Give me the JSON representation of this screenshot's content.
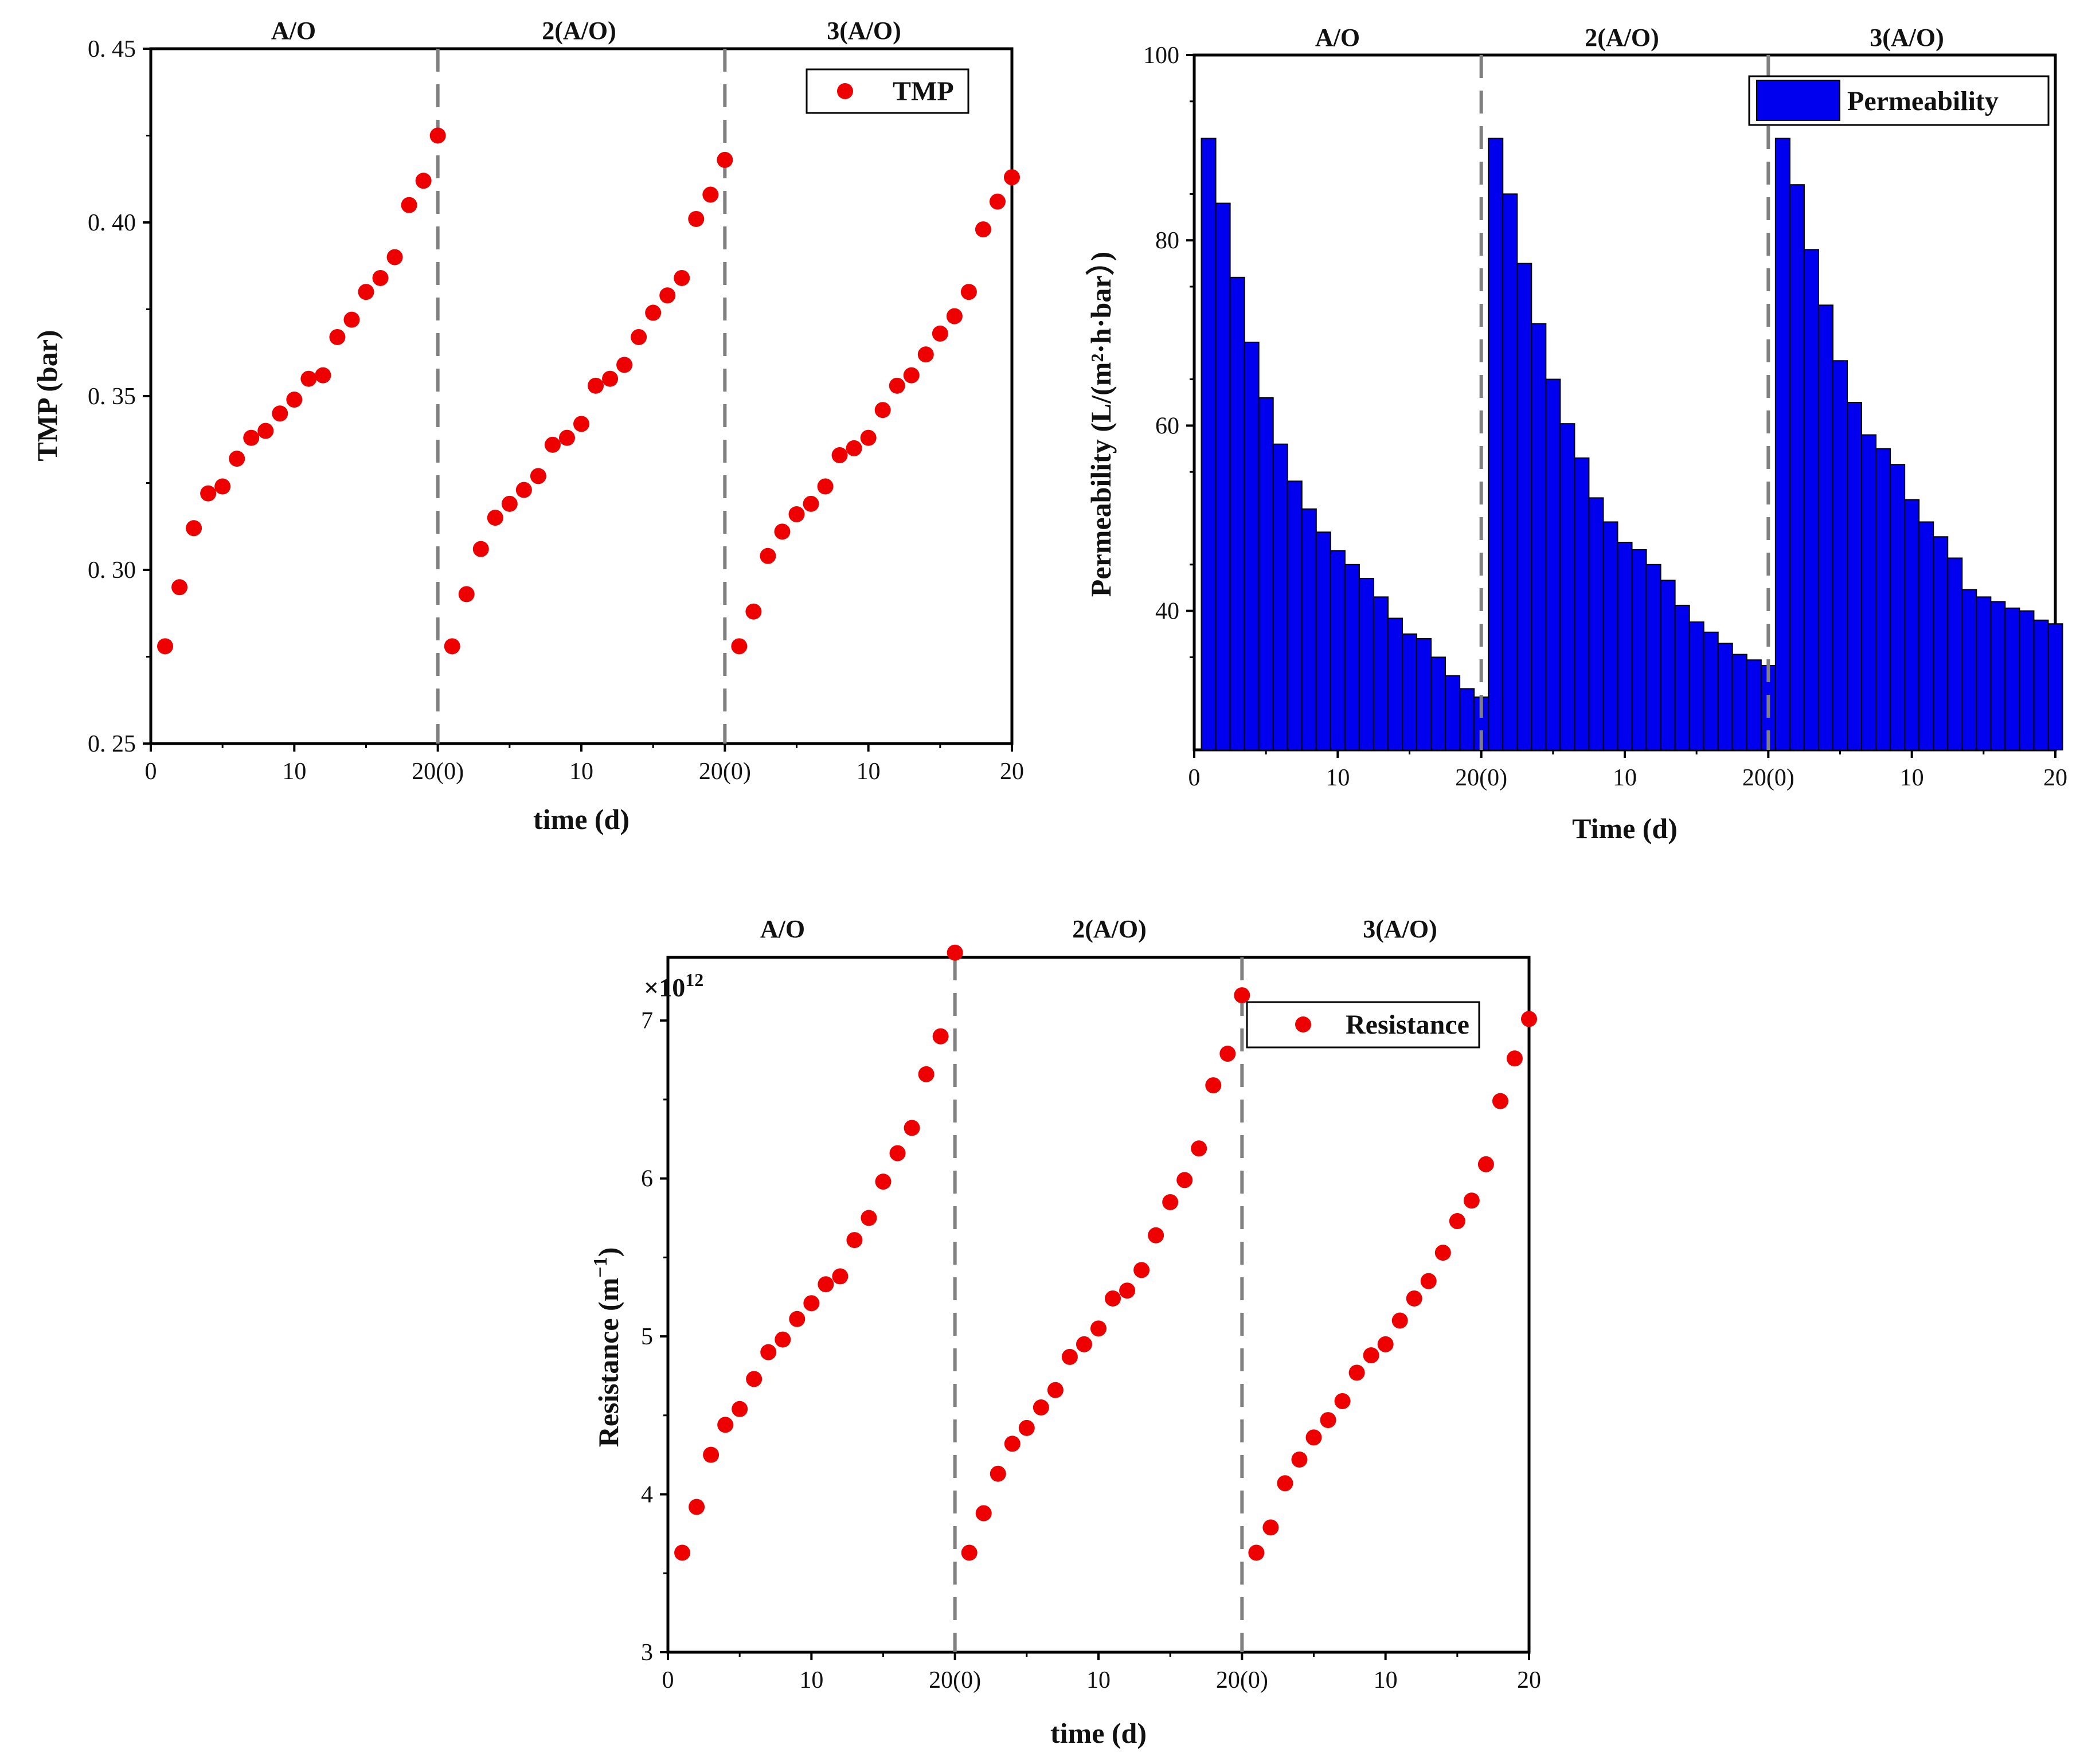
{
  "colors": {
    "marker": "#ee0000",
    "bar_fill": "#0000ee",
    "bar_edge": "#000000",
    "axis": "#000000",
    "divider": "#808080"
  },
  "chart_data": [
    {
      "type": "scatter",
      "xlabel": "time (d)",
      "ylabel": "TMP (bar)",
      "ylim": [
        0.25,
        0.45
      ],
      "y_ticks": [
        "0. 25",
        "0. 30",
        "0. 35",
        "0. 40",
        "0. 45"
      ],
      "x_ticks": [
        "0",
        "10",
        "20(0)",
        "10",
        "20(0)",
        "10",
        "20"
      ],
      "phases": [
        "A/O",
        "2(A/O)",
        "3(A/O)"
      ],
      "legend": [
        "TMP"
      ],
      "series": [
        {
          "name": "TMP",
          "x": [
            1,
            2,
            3,
            4,
            5,
            6,
            7,
            8,
            9,
            10,
            11,
            12,
            13,
            14,
            15,
            16,
            17,
            18,
            19,
            20,
            21,
            22,
            23,
            24,
            25,
            26,
            27,
            28,
            29,
            30,
            31,
            32,
            33,
            34,
            35,
            36,
            37,
            38,
            39,
            40,
            41,
            42,
            43,
            44,
            45,
            46,
            47,
            48,
            49,
            50,
            51,
            52,
            53,
            54,
            55,
            56,
            57,
            58,
            59,
            60
          ],
          "values": [
            0.278,
            0.295,
            0.312,
            0.322,
            0.324,
            0.332,
            0.338,
            0.34,
            0.345,
            0.349,
            0.355,
            0.356,
            0.367,
            0.372,
            0.38,
            0.384,
            0.39,
            0.405,
            0.412,
            0.425,
            0.278,
            0.293,
            0.306,
            0.315,
            0.319,
            0.323,
            0.327,
            0.336,
            0.338,
            0.342,
            0.353,
            0.355,
            0.359,
            0.367,
            0.374,
            0.379,
            0.384,
            0.401,
            0.408,
            0.418,
            0.278,
            0.288,
            0.304,
            0.311,
            0.316,
            0.319,
            0.324,
            0.333,
            0.335,
            0.338,
            0.346,
            0.353,
            0.356,
            0.362,
            0.368,
            0.373,
            0.38,
            0.398,
            0.406,
            0.413
          ]
        }
      ]
    },
    {
      "type": "bar",
      "xlabel": "Time (d)",
      "ylabel": "Permeability (L/(m²·h·bar）)",
      "ylim": [
        25,
        100
      ],
      "y_ticks": [
        "40",
        "60",
        "80",
        "100"
      ],
      "x_ticks": [
        "0",
        "10",
        "20(0)",
        "10",
        "20(0)",
        "10",
        "20"
      ],
      "phases": [
        "A/O",
        "2(A/O)",
        "3(A/O)"
      ],
      "legend": [
        "Permeability"
      ],
      "series": [
        {
          "name": "Permeability",
          "x": [
            1,
            2,
            3,
            4,
            5,
            6,
            7,
            8,
            9,
            10,
            11,
            12,
            13,
            14,
            15,
            16,
            17,
            18,
            19,
            20,
            21,
            22,
            23,
            24,
            25,
            26,
            27,
            28,
            29,
            30,
            31,
            32,
            33,
            34,
            35,
            36,
            37,
            38,
            39,
            40,
            41,
            42,
            43,
            44,
            45,
            46,
            47,
            48,
            49,
            50,
            51,
            52,
            53,
            54,
            55,
            56,
            57,
            58,
            59,
            60
          ],
          "values": [
            91,
            84,
            76,
            69,
            63,
            58,
            54,
            51,
            48.5,
            46.5,
            45,
            43.5,
            41.5,
            39.2,
            37.5,
            37,
            35,
            33,
            31.6,
            30.7,
            91,
            85,
            77.5,
            71,
            65,
            60.2,
            56.5,
            52.2,
            49.6,
            47.4,
            46.6,
            45,
            43.3,
            40.6,
            38.8,
            37.7,
            36.5,
            35.3,
            34.7,
            34.1,
            91,
            86,
            79,
            73,
            67,
            62.5,
            59,
            57.5,
            55.8,
            52,
            49.6,
            48,
            45.7,
            42.3,
            41.5,
            41,
            40.3,
            40,
            39,
            38.6
          ]
        }
      ]
    },
    {
      "type": "scatter",
      "xlabel": "time (d)",
      "ylabel_main": "Resistance (m",
      "ylabel_exp": "−1",
      "ylabel_close": ")",
      "ylim": [
        3,
        7.4
      ],
      "y_ticks": [
        "3",
        "4",
        "5",
        "6",
        "7"
      ],
      "x_ticks": [
        "0",
        "10",
        "20(0)",
        "10",
        "20(0)",
        "10",
        "20"
      ],
      "multiplier_base": "×10",
      "multiplier_exp": "12",
      "phases": [
        "A/O",
        "2(A/O)",
        "3(A/O)"
      ],
      "legend": [
        "Resistance"
      ],
      "series": [
        {
          "name": "Resistance",
          "x": [
            1,
            2,
            3,
            4,
            5,
            6,
            7,
            8,
            9,
            10,
            11,
            12,
            13,
            14,
            15,
            16,
            17,
            18,
            19,
            20,
            21,
            22,
            23,
            24,
            25,
            26,
            27,
            28,
            29,
            30,
            31,
            32,
            33,
            34,
            35,
            36,
            37,
            38,
            39,
            40,
            41,
            42,
            43,
            44,
            45,
            46,
            47,
            48,
            49,
            50,
            51,
            52,
            53,
            54,
            55,
            56,
            57,
            58,
            59,
            60
          ],
          "values": [
            3.63,
            3.92,
            4.25,
            4.44,
            4.54,
            4.73,
            4.9,
            4.98,
            5.11,
            5.21,
            5.33,
            5.38,
            5.61,
            5.75,
            5.98,
            6.16,
            6.32,
            6.66,
            6.9,
            7.43,
            3.63,
            3.88,
            4.13,
            4.32,
            4.42,
            4.55,
            4.66,
            4.87,
            4.95,
            5.05,
            5.24,
            5.29,
            5.42,
            5.64,
            5.85,
            5.99,
            6.19,
            6.59,
            6.79,
            7.16,
            3.63,
            3.79,
            4.07,
            4.22,
            4.36,
            4.47,
            4.59,
            4.77,
            4.88,
            4.95,
            5.1,
            5.24,
            5.35,
            5.53,
            5.73,
            5.86,
            6.09,
            6.49,
            6.76,
            7.01
          ]
        }
      ]
    }
  ]
}
